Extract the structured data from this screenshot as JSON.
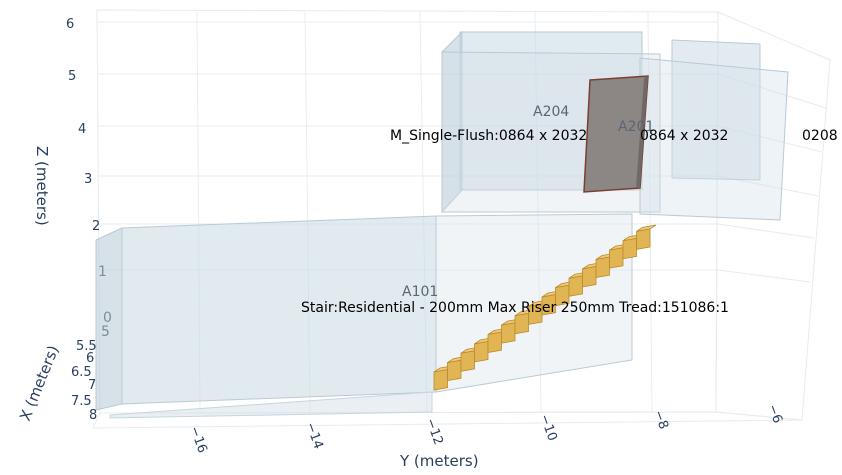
{
  "chart_data": {
    "type": "3d-mesh",
    "title": "",
    "axes": {
      "x": {
        "label": "X (meters)",
        "ticks": [
          "0",
          "5",
          "5.5",
          "6",
          "6.5",
          "7",
          "7.5",
          "8"
        ]
      },
      "y": {
        "label": "Y (meters)",
        "ticks": [
          "−16",
          "−14",
          "−12",
          "−10",
          "−8",
          "−6"
        ]
      },
      "z": {
        "label": "Z (meters)",
        "ticks": [
          "1",
          "2",
          "3",
          "4",
          "5",
          "6"
        ]
      }
    },
    "objects": [
      {
        "name": "A204",
        "kind": "room",
        "color": "#c9d8e2"
      },
      {
        "name": "A201",
        "kind": "room",
        "color": "#c9d8e2"
      },
      {
        "name": "A101",
        "kind": "room",
        "color": "#c9d8e2"
      },
      {
        "name": "M_Single-Flush:0864 x 2032mm:0864 x 2032mm:150208",
        "kind": "door",
        "color": "#8c8684"
      },
      {
        "name": "Stair:Residential - 200mm Max Riser 250mm Tread:151086:1",
        "kind": "stair",
        "color": "#e2b554",
        "steps": 16
      }
    ],
    "visible_labels": {
      "door_part1": "M_Single-Flush:0864 x 2032",
      "door_part2": "0864 x 2032",
      "door_suffix": "0208",
      "stair": "Stair:Residential - 200mm Max Riser 250mm Tread:151086:1"
    }
  }
}
